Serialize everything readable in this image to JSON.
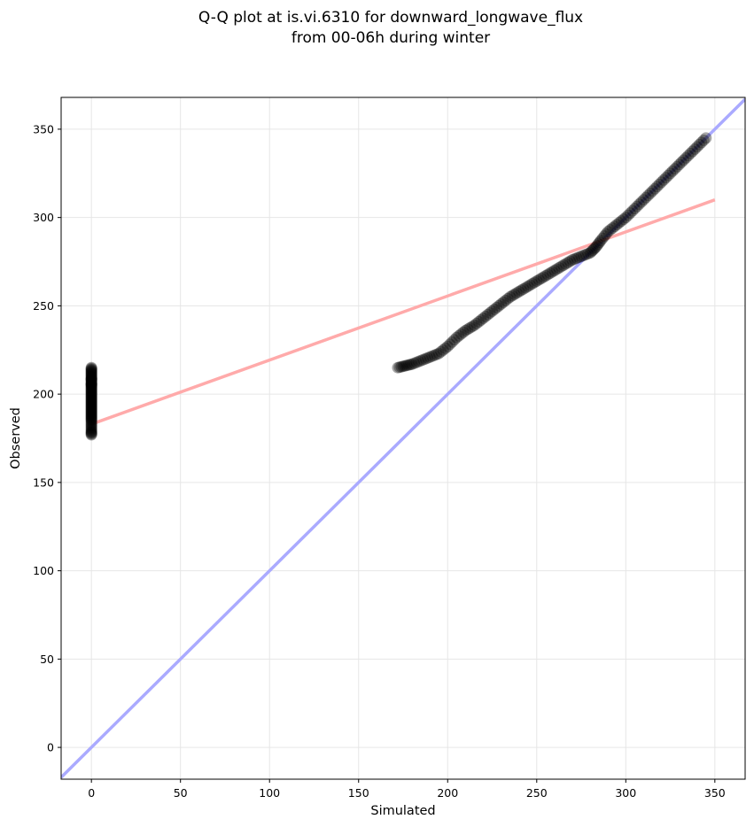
{
  "chart_data": {
    "type": "scatter",
    "title_line1": "Q-Q plot at is.vi.6310 for downward_longwave_flux",
    "title_line2": "from 00-06h during winter",
    "xlabel": "Simulated",
    "ylabel": "Observed",
    "xlim": [
      -17,
      367
    ],
    "ylim": [
      -18,
      368
    ],
    "xticks": [
      0,
      50,
      100,
      150,
      200,
      250,
      300,
      350
    ],
    "yticks": [
      0,
      50,
      100,
      150,
      200,
      250,
      300,
      350
    ],
    "grid": true,
    "point_color": "#000000",
    "identity_line": {
      "color": "#aaaaff",
      "x": [
        -17,
        367
      ],
      "y": [
        -17,
        367
      ]
    },
    "fit_line": {
      "color": "#ffaaaa",
      "x": [
        0,
        350
      ],
      "y": [
        183,
        310
      ]
    },
    "series": [
      {
        "points_cluster_zero": {
          "x": [
            0,
            0,
            0,
            0,
            0,
            0,
            0,
            0,
            0,
            0,
            0,
            0,
            0,
            0,
            0,
            0,
            0,
            0,
            0,
            0
          ],
          "y": [
            177,
            179,
            182,
            185,
            187,
            189,
            191,
            193,
            195,
            197,
            199,
            201,
            203,
            205,
            206,
            208,
            209,
            211,
            213,
            215
          ]
        },
        "points_main": {
          "x": [
            172,
            176,
            180,
            185,
            190,
            195,
            200,
            205,
            210,
            215,
            220,
            225,
            230,
            235,
            240,
            245,
            250,
            255,
            260,
            265,
            270,
            275,
            280,
            283,
            286,
            290,
            295,
            300,
            305,
            310,
            315,
            320,
            325,
            330,
            335,
            340,
            345
          ],
          "y": [
            215,
            216,
            217,
            219,
            221,
            223,
            227,
            232,
            236,
            239,
            243,
            247,
            251,
            255,
            258,
            261,
            264,
            267,
            270,
            273,
            276,
            278,
            280,
            283,
            287,
            292,
            296,
            300,
            305,
            310,
            315,
            320,
            325,
            330,
            335,
            340,
            345
          ]
        }
      }
    ]
  }
}
